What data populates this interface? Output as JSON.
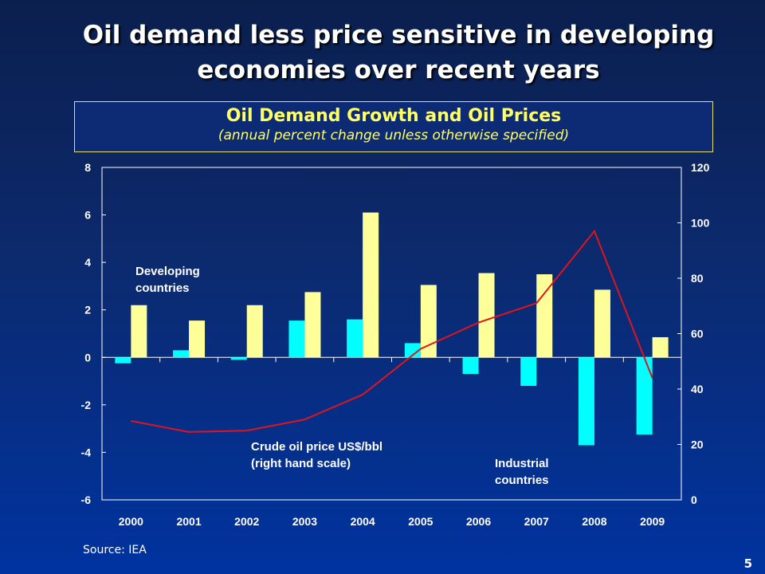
{
  "slide": {
    "title_line1": "Oil demand less price sensitive in developing",
    "title_line2": "economies over recent years",
    "source": "Source: IEA",
    "page_number": "5"
  },
  "chart_data": {
    "type": "bar+line",
    "title": "Oil Demand Growth and Oil Prices",
    "subtitle": "(annual percent change unless otherwise specified)",
    "categories": [
      "2000",
      "2001",
      "2002",
      "2003",
      "2004",
      "2005",
      "2006",
      "2007",
      "2008",
      "2009"
    ],
    "left_axis": {
      "ylim": [
        -6,
        8
      ],
      "ticks": [
        -6,
        -4,
        -2,
        0,
        2,
        4,
        6,
        8
      ]
    },
    "right_axis": {
      "ylim": [
        0,
        120
      ],
      "ticks": [
        0,
        20,
        40,
        60,
        80,
        100,
        120
      ]
    },
    "series": [
      {
        "name": "Industrial countries",
        "type": "bar",
        "axis": "left",
        "color": "#00ffff",
        "values": [
          -0.25,
          0.3,
          -0.1,
          1.55,
          1.6,
          0.6,
          -0.7,
          -1.2,
          -3.7,
          -3.25
        ]
      },
      {
        "name": "Developing countries",
        "type": "bar",
        "axis": "left",
        "color": "#ffff99",
        "values": [
          2.2,
          1.55,
          2.2,
          2.75,
          6.1,
          3.05,
          3.55,
          3.5,
          2.85,
          0.85
        ]
      },
      {
        "name": "Crude oil price US$/bbl (right hand scale)",
        "type": "line",
        "axis": "right",
        "color": "#e0141e",
        "values": [
          28.5,
          24.5,
          25,
          29,
          38,
          54.5,
          64,
          71,
          97,
          44
        ]
      }
    ],
    "annotations": {
      "developing": [
        "Developing",
        "countries"
      ],
      "price": [
        "Crude oil price US$/bbl",
        "(right hand scale)"
      ],
      "industrial": [
        "Industrial",
        "countries"
      ]
    },
    "grid": false
  }
}
